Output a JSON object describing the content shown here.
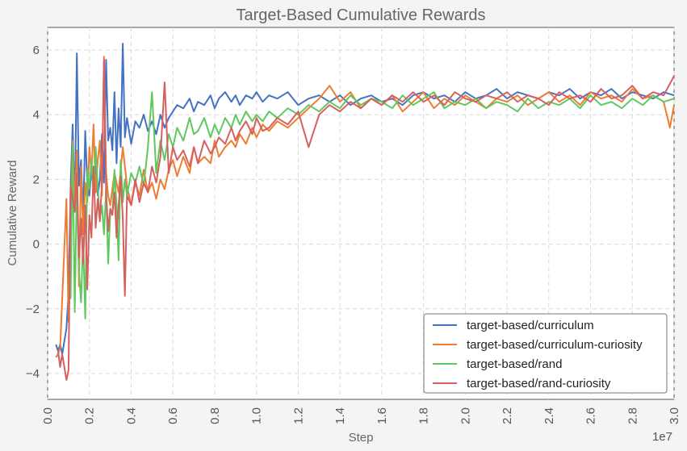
{
  "chart_data": {
    "type": "line",
    "title": "Target-Based Cumulative Rewards",
    "xlabel": "Step",
    "ylabel": "Cumulative Reward",
    "x_offset_label": "1e7",
    "xlim": [
      0.0,
      3.0
    ],
    "ylim": [
      -4.8,
      6.7
    ],
    "x_ticks": [
      0.0,
      0.2,
      0.4,
      0.6,
      0.8,
      1.0,
      1.2,
      1.4,
      1.6,
      1.8,
      2.0,
      2.2,
      2.4,
      2.6,
      2.8,
      3.0
    ],
    "x_tick_labels": [
      "0.0",
      "0.2",
      "0.4",
      "0.6",
      "0.8",
      "1.0",
      "1.2",
      "1.4",
      "1.6",
      "1.8",
      "2.0",
      "2.2",
      "2.4",
      "2.6",
      "2.8",
      "3.0"
    ],
    "y_ticks": [
      -4,
      -2,
      0,
      2,
      4,
      6
    ],
    "y_tick_labels": [
      "−4",
      "−2",
      "0",
      "2",
      "4",
      "6"
    ],
    "grid": true,
    "legend_position": "lower-right",
    "series": [
      {
        "name": "target-based/curriculum",
        "color": "#4472c4",
        "x": [
          0.04,
          0.05,
          0.06,
          0.07,
          0.09,
          0.1,
          0.11,
          0.12,
          0.13,
          0.14,
          0.15,
          0.16,
          0.17,
          0.18,
          0.19,
          0.2,
          0.21,
          0.22,
          0.23,
          0.24,
          0.25,
          0.26,
          0.27,
          0.28,
          0.29,
          0.3,
          0.31,
          0.32,
          0.33,
          0.34,
          0.35,
          0.36,
          0.37,
          0.38,
          0.39,
          0.4,
          0.42,
          0.44,
          0.46,
          0.48,
          0.5,
          0.52,
          0.54,
          0.56,
          0.58,
          0.6,
          0.62,
          0.65,
          0.68,
          0.7,
          0.72,
          0.75,
          0.78,
          0.8,
          0.82,
          0.85,
          0.88,
          0.9,
          0.92,
          0.95,
          0.98,
          1.0,
          1.03,
          1.06,
          1.1,
          1.15,
          1.2,
          1.25,
          1.3,
          1.35,
          1.4,
          1.45,
          1.5,
          1.55,
          1.6,
          1.65,
          1.7,
          1.75,
          1.8,
          1.85,
          1.9,
          1.95,
          2.0,
          2.05,
          2.1,
          2.15,
          2.2,
          2.25,
          2.3,
          2.35,
          2.4,
          2.45,
          2.5,
          2.55,
          2.6,
          2.65,
          2.7,
          2.75,
          2.8,
          2.85,
          2.9,
          2.95,
          3.0
        ],
        "y": [
          -3.1,
          -3.3,
          -3.1,
          -3.4,
          -2.6,
          -1.5,
          1.8,
          3.7,
          1.0,
          5.9,
          1.8,
          2.6,
          0.8,
          3.5,
          1.9,
          1.5,
          2.3,
          1.7,
          2.4,
          1.5,
          2.0,
          3.4,
          1.9,
          5.7,
          3.2,
          3.6,
          2.9,
          4.7,
          2.5,
          4.2,
          3.0,
          6.2,
          3.3,
          3.9,
          3.5,
          3.1,
          3.8,
          3.6,
          4.0,
          3.5,
          3.8,
          3.4,
          4.0,
          3.6,
          3.9,
          4.1,
          4.3,
          4.2,
          4.5,
          4.1,
          4.4,
          4.3,
          4.6,
          4.2,
          4.5,
          4.7,
          4.4,
          4.6,
          4.3,
          4.6,
          4.5,
          4.7,
          4.4,
          4.6,
          4.5,
          4.7,
          4.3,
          4.5,
          4.6,
          4.4,
          4.6,
          4.3,
          4.5,
          4.6,
          4.4,
          4.5,
          4.3,
          4.6,
          4.7,
          4.5,
          4.6,
          4.4,
          4.7,
          4.5,
          4.6,
          4.8,
          4.5,
          4.7,
          4.6,
          4.5,
          4.7,
          4.6,
          4.8,
          4.5,
          4.7,
          4.6,
          4.8,
          4.5,
          4.7,
          4.6,
          4.5,
          4.7,
          4.6
        ]
      },
      {
        "name": "target-based/curriculum-curiosity",
        "color": "#ed7d31",
        "x": [
          0.04,
          0.05,
          0.06,
          0.09,
          0.1,
          0.11,
          0.12,
          0.13,
          0.14,
          0.15,
          0.16,
          0.17,
          0.18,
          0.19,
          0.2,
          0.21,
          0.22,
          0.23,
          0.24,
          0.25,
          0.26,
          0.27,
          0.28,
          0.29,
          0.3,
          0.32,
          0.34,
          0.36,
          0.38,
          0.4,
          0.42,
          0.44,
          0.46,
          0.48,
          0.5,
          0.52,
          0.54,
          0.56,
          0.58,
          0.6,
          0.62,
          0.65,
          0.68,
          0.7,
          0.72,
          0.75,
          0.78,
          0.8,
          0.82,
          0.85,
          0.88,
          0.9,
          0.92,
          0.95,
          0.98,
          1.0,
          1.03,
          1.06,
          1.1,
          1.15,
          1.2,
          1.25,
          1.3,
          1.35,
          1.4,
          1.45,
          1.5,
          1.55,
          1.6,
          1.65,
          1.7,
          1.75,
          1.8,
          1.85,
          1.9,
          1.95,
          2.0,
          2.05,
          2.1,
          2.15,
          2.2,
          2.25,
          2.3,
          2.35,
          2.4,
          2.45,
          2.5,
          2.55,
          2.6,
          2.65,
          2.7,
          2.75,
          2.8,
          2.85,
          2.9,
          2.95,
          2.98,
          3.0
        ],
        "y": [
          -3.5,
          -3.4,
          -3.2,
          1.4,
          -2.4,
          0.5,
          3.2,
          1.2,
          2.9,
          -1.3,
          2.4,
          0.3,
          1.9,
          1.3,
          3.0,
          2.2,
          3.7,
          1.6,
          2.6,
          3.2,
          1.5,
          5.8,
          2.2,
          1.5,
          1.2,
          2.2,
          1.6,
          3.0,
          1.8,
          1.2,
          1.9,
          1.5,
          2.3,
          1.6,
          1.9,
          1.4,
          2.0,
          1.7,
          2.3,
          2.6,
          2.1,
          2.7,
          2.2,
          3.0,
          2.5,
          2.7,
          2.5,
          3.2,
          2.7,
          3.0,
          3.2,
          3.0,
          3.4,
          3.1,
          3.6,
          3.3,
          3.7,
          3.5,
          3.8,
          3.6,
          3.9,
          4.2,
          4.5,
          4.9,
          4.4,
          4.7,
          4.2,
          4.5,
          4.3,
          4.6,
          4.1,
          4.4,
          4.7,
          4.2,
          4.5,
          4.3,
          4.6,
          4.4,
          4.2,
          4.5,
          4.4,
          4.6,
          4.3,
          4.5,
          4.7,
          4.4,
          4.6,
          4.3,
          4.7,
          4.5,
          4.6,
          4.4,
          4.8,
          4.5,
          4.6,
          4.4,
          3.6,
          4.3
        ]
      },
      {
        "name": "target-based/rand",
        "color": "#5fc85f",
        "x": [
          0.11,
          0.12,
          0.13,
          0.14,
          0.15,
          0.16,
          0.17,
          0.18,
          0.19,
          0.2,
          0.21,
          0.22,
          0.23,
          0.24,
          0.25,
          0.26,
          0.27,
          0.28,
          0.29,
          0.3,
          0.31,
          0.32,
          0.33,
          0.34,
          0.35,
          0.36,
          0.37,
          0.38,
          0.4,
          0.42,
          0.44,
          0.46,
          0.48,
          0.5,
          0.52,
          0.54,
          0.56,
          0.58,
          0.6,
          0.62,
          0.65,
          0.68,
          0.7,
          0.72,
          0.75,
          0.78,
          0.8,
          0.82,
          0.85,
          0.88,
          0.9,
          0.92,
          0.95,
          0.98,
          1.0,
          1.03,
          1.06,
          1.1,
          1.15,
          1.2,
          1.25,
          1.3,
          1.35,
          1.4,
          1.45,
          1.5,
          1.55,
          1.6,
          1.65,
          1.7,
          1.75,
          1.8,
          1.85,
          1.9,
          1.95,
          2.0,
          2.05,
          2.1,
          2.15,
          2.2,
          2.25,
          2.3,
          2.35,
          2.4,
          2.45,
          2.5,
          2.55,
          2.6,
          2.65,
          2.7,
          2.75,
          2.8,
          2.85,
          2.9,
          2.95,
          3.0
        ],
        "y": [
          -1.7,
          3.1,
          -2.1,
          1.9,
          -0.8,
          -1.8,
          0.2,
          -2.3,
          2.3,
          1.7,
          2.6,
          1.5,
          3.0,
          1.8,
          0.8,
          1.2,
          0.3,
          1.7,
          -0.6,
          1.0,
          0.9,
          2.3,
          1.2,
          -0.5,
          2.6,
          1.3,
          2.0,
          1.5,
          2.2,
          1.9,
          2.4,
          1.8,
          3.0,
          4.7,
          2.2,
          3.2,
          2.6,
          3.4,
          3.0,
          3.6,
          3.2,
          3.9,
          3.4,
          3.5,
          3.9,
          3.3,
          3.7,
          3.4,
          3.9,
          3.6,
          4.0,
          3.7,
          4.1,
          3.8,
          4.0,
          3.8,
          4.1,
          3.9,
          4.2,
          4.0,
          4.3,
          4.1,
          4.4,
          4.2,
          4.6,
          4.3,
          4.5,
          4.4,
          4.2,
          4.6,
          4.3,
          4.5,
          4.7,
          4.2,
          4.4,
          4.3,
          4.5,
          4.2,
          4.4,
          4.3,
          4.1,
          4.5,
          4.2,
          4.4,
          4.3,
          4.5,
          4.2,
          4.6,
          4.3,
          4.4,
          4.2,
          4.5,
          4.3,
          4.6,
          4.4,
          4.5
        ]
      },
      {
        "name": "target-based/rand-curiosity",
        "color": "#d65f5f",
        "x": [
          0.05,
          0.06,
          0.07,
          0.09,
          0.1,
          0.11,
          0.13,
          0.14,
          0.15,
          0.16,
          0.17,
          0.18,
          0.19,
          0.2,
          0.21,
          0.22,
          0.23,
          0.24,
          0.25,
          0.26,
          0.27,
          0.28,
          0.29,
          0.3,
          0.31,
          0.32,
          0.33,
          0.34,
          0.35,
          0.36,
          0.37,
          0.38,
          0.4,
          0.42,
          0.44,
          0.46,
          0.48,
          0.5,
          0.52,
          0.54,
          0.56,
          0.58,
          0.6,
          0.62,
          0.65,
          0.68,
          0.7,
          0.72,
          0.75,
          0.78,
          0.8,
          0.82,
          0.85,
          0.88,
          0.9,
          0.92,
          0.95,
          0.98,
          1.0,
          1.03,
          1.06,
          1.1,
          1.15,
          1.2,
          1.25,
          1.3,
          1.35,
          1.4,
          1.45,
          1.5,
          1.55,
          1.6,
          1.65,
          1.7,
          1.75,
          1.8,
          1.85,
          1.9,
          1.95,
          2.0,
          2.05,
          2.1,
          2.15,
          2.2,
          2.25,
          2.3,
          2.35,
          2.4,
          2.45,
          2.5,
          2.55,
          2.6,
          2.65,
          2.7,
          2.75,
          2.8,
          2.85,
          2.9,
          2.95,
          3.0
        ],
        "y": [
          -3.3,
          -3.8,
          -3.4,
          -4.2,
          -3.9,
          1.8,
          1.0,
          2.2,
          -0.4,
          0.8,
          -0.6,
          1.2,
          -1.4,
          0.9,
          0.2,
          2.4,
          0.5,
          1.4,
          0.7,
          1.9,
          5.7,
          1.6,
          0.4,
          1.1,
          0.9,
          1.6,
          0.2,
          1.2,
          2.1,
          0.8,
          -1.6,
          1.5,
          1.2,
          2.0,
          1.3,
          1.9,
          1.6,
          2.4,
          1.9,
          2.7,
          5.0,
          2.2,
          3.0,
          2.6,
          2.9,
          2.4,
          3.0,
          2.5,
          3.2,
          2.8,
          3.0,
          3.3,
          3.1,
          3.6,
          3.2,
          3.5,
          3.8,
          3.4,
          3.9,
          3.5,
          3.6,
          3.9,
          3.7,
          4.1,
          3.0,
          4.0,
          4.3,
          4.1,
          4.4,
          4.2,
          4.5,
          4.3,
          4.6,
          4.4,
          4.7,
          4.4,
          4.6,
          4.3,
          4.7,
          4.5,
          4.4,
          4.6,
          4.5,
          4.7,
          4.4,
          4.6,
          4.5,
          4.3,
          4.7,
          4.5,
          4.6,
          4.4,
          4.8,
          4.5,
          4.6,
          4.9,
          4.5,
          4.7,
          4.6,
          5.2
        ]
      }
    ]
  }
}
